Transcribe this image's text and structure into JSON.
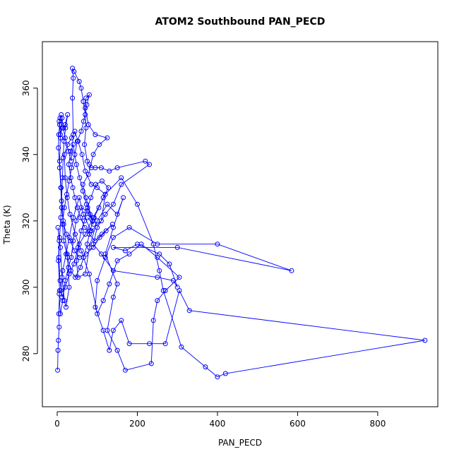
{
  "chart_data": {
    "type": "scatter",
    "title": "ATOM2 Southbound PAN_PECD",
    "xlabel": "PAN_PECD",
    "ylabel": "Theta (K)",
    "xlim": [
      -37,
      950
    ],
    "ylim": [
      264,
      374
    ],
    "xticks": [
      0,
      200,
      400,
      600,
      800
    ],
    "yticks": [
      280,
      300,
      320,
      340,
      360
    ],
    "grid": false,
    "color": "#0000ff",
    "connected": true,
    "series": [
      {
        "points": [
          [
            1,
            275
          ],
          [
            2,
            281
          ],
          [
            3,
            284
          ],
          [
            5,
            288
          ],
          [
            4,
            292
          ],
          [
            6,
            299
          ],
          [
            3,
            308
          ],
          [
            5,
            314
          ],
          [
            2,
            318
          ],
          [
            8,
            312
          ],
          [
            12,
            303
          ],
          [
            18,
            296
          ],
          [
            22,
            294
          ],
          [
            30,
            300
          ],
          [
            25,
            310
          ],
          [
            15,
            320
          ],
          [
            10,
            330
          ],
          [
            6,
            338
          ],
          [
            8,
            345
          ],
          [
            10,
            349
          ],
          [
            12,
            351
          ],
          [
            15,
            348
          ],
          [
            20,
            345
          ],
          [
            28,
            341
          ],
          [
            35,
            338
          ],
          [
            40,
            346
          ],
          [
            38,
            357
          ],
          [
            40,
            363
          ],
          [
            38,
            366
          ],
          [
            42,
            365
          ],
          [
            55,
            362
          ],
          [
            60,
            360
          ],
          [
            65,
            356
          ],
          [
            70,
            352
          ],
          [
            72,
            348
          ],
          [
            68,
            343
          ],
          [
            75,
            338
          ],
          [
            80,
            337
          ],
          [
            85,
            336
          ],
          [
            95,
            336
          ],
          [
            110,
            336
          ],
          [
            130,
            335
          ],
          [
            150,
            336
          ],
          [
            220,
            338
          ],
          [
            230,
            337
          ],
          [
            160,
            331
          ],
          [
            140,
            325
          ],
          [
            120,
            322
          ],
          [
            100,
            318
          ],
          [
            90,
            313
          ],
          [
            110,
            310
          ],
          [
            140,
            305
          ],
          [
            250,
            303
          ],
          [
            290,
            302
          ],
          [
            300,
            300
          ],
          [
            280,
            307
          ],
          [
            255,
            310
          ],
          [
            200,
            313
          ],
          [
            170,
            311
          ],
          [
            140,
            312
          ],
          [
            300,
            312
          ],
          [
            585,
            305
          ],
          [
            400,
            313
          ],
          [
            250,
            313
          ],
          [
            180,
            318
          ],
          [
            140,
            315
          ],
          [
            120,
            309
          ],
          [
            100,
            302
          ],
          [
            95,
            294
          ],
          [
            115,
            287
          ],
          [
            130,
            281
          ],
          [
            140,
            287
          ],
          [
            160,
            290
          ],
          [
            180,
            283
          ],
          [
            230,
            283
          ],
          [
            270,
            283
          ],
          [
            305,
            299
          ],
          [
            330,
            293
          ],
          [
            918,
            284
          ],
          [
            420,
            274
          ],
          [
            400,
            273
          ],
          [
            370,
            276
          ],
          [
            310,
            282
          ],
          [
            265,
            299
          ],
          [
            255,
            305
          ],
          [
            240,
            313
          ],
          [
            200,
            325
          ],
          [
            160,
            333
          ],
          [
            120,
            328
          ],
          [
            90,
            321
          ],
          [
            70,
            316
          ],
          [
            55,
            313
          ],
          [
            48,
            308
          ],
          [
            52,
            303
          ],
          [
            70,
            304
          ],
          [
            80,
            312
          ],
          [
            100,
            320
          ],
          [
            125,
            325
          ],
          [
            150,
            322
          ],
          [
            165,
            327
          ],
          [
            140,
            318
          ],
          [
            120,
            310
          ],
          [
            150,
            301
          ],
          [
            140,
            297
          ],
          [
            125,
            287
          ],
          [
            150,
            281
          ],
          [
            170,
            275
          ],
          [
            235,
            277
          ],
          [
            240,
            290
          ],
          [
            250,
            296
          ],
          [
            270,
            299
          ],
          [
            305,
            303
          ],
          [
            250,
            309
          ],
          [
            210,
            313
          ],
          [
            180,
            310
          ],
          [
            150,
            308
          ],
          [
            130,
            301
          ],
          [
            115,
            296
          ],
          [
            100,
            292
          ],
          [
            80,
            304
          ],
          [
            60,
            311
          ],
          [
            45,
            316
          ],
          [
            32,
            322
          ],
          [
            25,
            327
          ],
          [
            20,
            333
          ],
          [
            18,
            340
          ],
          [
            26,
            343
          ],
          [
            36,
            345
          ],
          [
            44,
            347
          ],
          [
            52,
            344
          ],
          [
            62,
            340
          ],
          [
            70,
            335
          ],
          [
            85,
            331
          ],
          [
            100,
            330
          ],
          [
            120,
            328
          ],
          [
            110,
            320
          ],
          [
            85,
            317
          ],
          [
            65,
            322
          ],
          [
            55,
            327
          ],
          [
            40,
            321
          ],
          [
            30,
            315
          ],
          [
            22,
            310
          ],
          [
            14,
            305
          ],
          [
            9,
            299
          ],
          [
            5,
            298
          ],
          [
            8,
            292
          ],
          [
            14,
            296
          ],
          [
            20,
            302
          ],
          [
            28,
            306
          ],
          [
            35,
            309
          ],
          [
            40,
            314
          ],
          [
            47,
            320
          ],
          [
            60,
            324
          ],
          [
            75,
            323
          ],
          [
            88,
            320
          ],
          [
            72,
            327
          ],
          [
            64,
            331
          ],
          [
            78,
            334
          ],
          [
            90,
            340
          ],
          [
            105,
            343
          ],
          [
            125,
            345
          ],
          [
            95,
            346
          ],
          [
            78,
            349
          ],
          [
            70,
            354
          ],
          [
            72,
            357
          ],
          [
            80,
            358
          ],
          [
            74,
            355
          ],
          [
            66,
            350
          ],
          [
            60,
            347
          ],
          [
            50,
            344
          ],
          [
            44,
            340
          ],
          [
            36,
            336
          ],
          [
            30,
            332
          ],
          [
            24,
            328
          ],
          [
            18,
            324
          ],
          [
            13,
            319
          ],
          [
            16,
            314
          ],
          [
            26,
            309
          ],
          [
            34,
            305
          ],
          [
            45,
            303
          ],
          [
            58,
            306
          ],
          [
            66,
            309
          ],
          [
            75,
            313
          ],
          [
            82,
            317
          ],
          [
            92,
            321
          ],
          [
            104,
            324
          ],
          [
            115,
            327
          ],
          [
            128,
            330
          ],
          [
            112,
            332
          ],
          [
            96,
            331
          ],
          [
            84,
            327
          ],
          [
            76,
            324
          ],
          [
            68,
            320
          ],
          [
            60,
            317
          ],
          [
            52,
            312
          ],
          [
            42,
            307
          ],
          [
            30,
            304
          ],
          [
            20,
            300
          ],
          [
            12,
            297
          ],
          [
            7,
            302
          ],
          [
            4,
            309
          ],
          [
            6,
            315
          ],
          [
            9,
            321
          ],
          [
            11,
            326
          ],
          [
            13,
            333
          ],
          [
            15,
            339
          ],
          [
            17,
            344
          ],
          [
            21,
            348
          ],
          [
            26,
            352
          ],
          [
            20,
            349
          ],
          [
            13,
            348
          ],
          [
            8,
            346
          ],
          [
            5,
            350
          ],
          [
            7,
            351
          ],
          [
            10,
            352
          ],
          [
            6,
            349
          ],
          [
            4,
            346
          ],
          [
            3,
            342
          ],
          [
            6,
            336
          ],
          [
            9,
            330
          ],
          [
            11,
            324
          ],
          [
            16,
            319
          ],
          [
            23,
            316
          ],
          [
            33,
            314
          ],
          [
            43,
            311
          ],
          [
            56,
            309
          ],
          [
            72,
            310
          ],
          [
            90,
            312
          ],
          [
            106,
            315
          ],
          [
            122,
            317
          ],
          [
            138,
            319
          ],
          [
            112,
            316
          ],
          [
            94,
            314
          ],
          [
            80,
            316
          ],
          [
            69,
            318
          ],
          [
            58,
            321
          ],
          [
            50,
            324
          ],
          [
            44,
            327
          ],
          [
            39,
            330
          ],
          [
            34,
            333
          ],
          [
            29,
            337
          ],
          [
            34,
            341
          ],
          [
            40,
            343
          ],
          [
            48,
            337
          ],
          [
            56,
            333
          ],
          [
            64,
            329
          ],
          [
            73,
            325
          ],
          [
            82,
            322
          ],
          [
            91,
            319
          ],
          [
            76,
            321
          ]
        ]
      }
    ]
  }
}
